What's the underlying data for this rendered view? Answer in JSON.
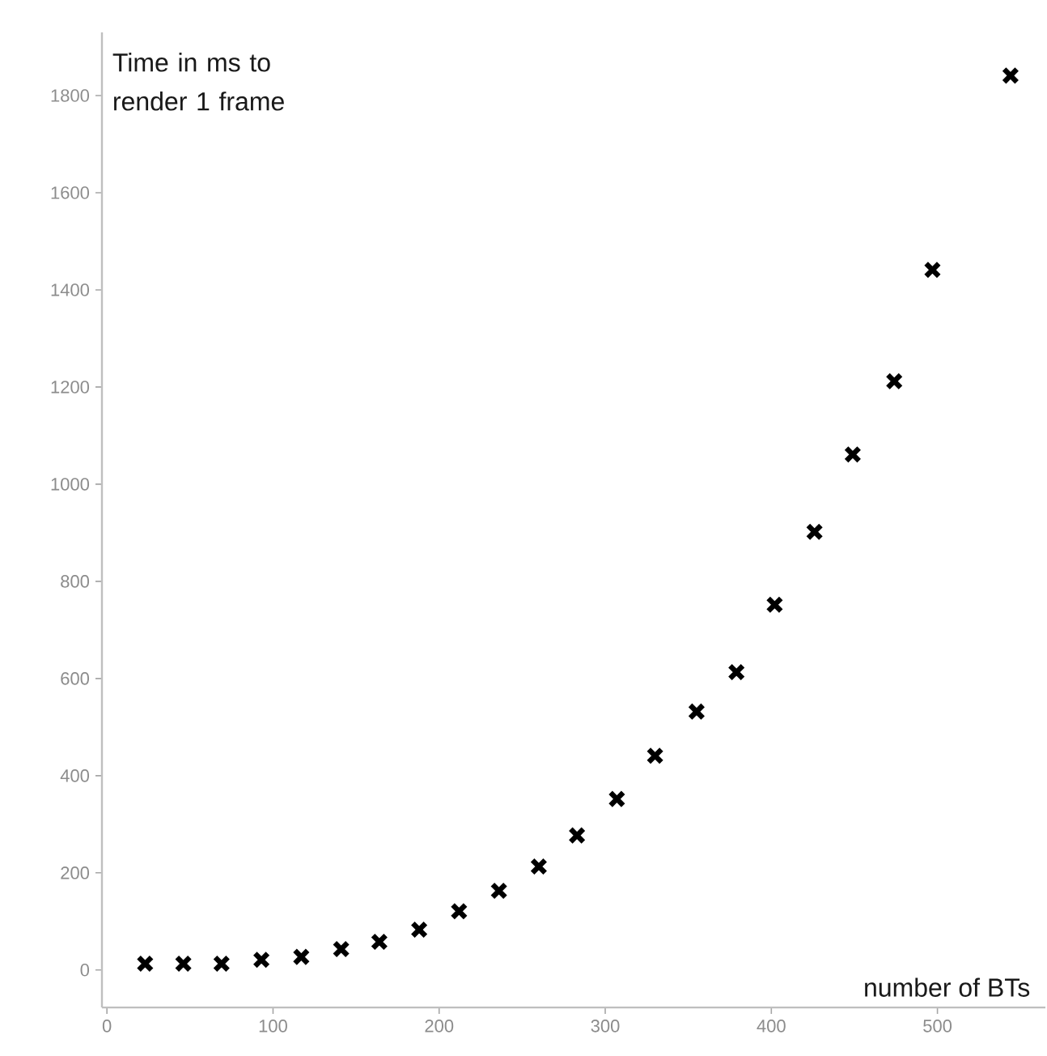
{
  "chart_data": {
    "type": "scatter",
    "xlabel": "number of BTs",
    "ylabel": "Time in ms to render 1 frame",
    "x": [
      23,
      46,
      69,
      93,
      117,
      141,
      164,
      188,
      212,
      236,
      260,
      283,
      307,
      330,
      355,
      379,
      402,
      426,
      449,
      474,
      497,
      544
    ],
    "series": [
      {
        "color": "#000000",
        "values": [
          13,
          13,
          13,
          21,
          27,
          43,
          58,
          83,
          121,
          163,
          213,
          277,
          352,
          441,
          532,
          613,
          752,
          902,
          1061,
          1212,
          1441,
          1841
        ]
      }
    ],
    "xlim": [
      -3,
      565
    ],
    "ylim": [
      -77,
      1930
    ],
    "xticks": [
      0,
      100,
      200,
      300,
      400,
      500
    ],
    "yticks": [
      0,
      200,
      400,
      600,
      800,
      1000,
      1200,
      1400,
      1600,
      1800
    ],
    "marker": "cross"
  }
}
